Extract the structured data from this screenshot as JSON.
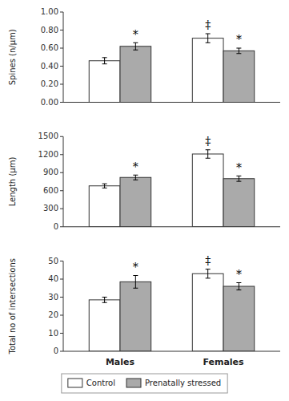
{
  "chart_data": [
    {
      "type": "bar",
      "y_label": "Spines (n/μm)",
      "categories": [
        null,
        null
      ],
      "series": [
        {
          "color": "white",
          "values": [
            0.46,
            0.71
          ],
          "errors": [
            0.035,
            0.05
          ]
        },
        {
          "color": "#aaaaaa",
          "values": [
            0.62,
            0.57
          ],
          "errors": [
            0.04,
            0.03
          ]
        }
      ],
      "ylim": [
        0.0,
        1.0
      ],
      "yticks": [
        {
          "value": 0.0,
          "label": "0.00"
        },
        {
          "value": 0.2,
          "label": "0.20"
        },
        {
          "value": 0.4,
          "label": "0.40"
        },
        {
          "value": 0.6,
          "label": "0.60"
        },
        {
          "value": 0.8,
          "label": "0.80"
        },
        {
          "value": 1.0,
          "label": "1.00"
        }
      ],
      "grid": false,
      "annotations": [
        {
          "text": "*",
          "series": 1,
          "category": 0
        },
        {
          "text": "‡",
          "series": 0,
          "category": 1
        },
        {
          "text": "*",
          "series": 1,
          "category": 1
        }
      ]
    },
    {
      "type": "bar",
      "y_label": "Length (μm)",
      "categories": [
        null,
        null
      ],
      "series": [
        {
          "color": "white",
          "values": [
            680,
            1210
          ],
          "errors": [
            35,
            70
          ]
        },
        {
          "color": "#aaaaaa",
          "values": [
            820,
            800
          ],
          "errors": [
            40,
            45
          ]
        }
      ],
      "ylim": [
        0,
        1500
      ],
      "yticks": [
        0,
        300,
        600,
        900,
        1200,
        1500
      ],
      "grid": false,
      "annotations": [
        {
          "text": "*",
          "series": 1,
          "category": 0
        },
        {
          "text": "‡",
          "series": 0,
          "category": 1
        },
        {
          "text": "*",
          "series": 1,
          "category": 1
        }
      ]
    },
    {
      "type": "bar",
      "y_label": "Total no of intersections",
      "categories": [
        "Males",
        "Females"
      ],
      "series": [
        {
          "name": "Control",
          "color": "white",
          "values": [
            28.5,
            43.0
          ],
          "errors": [
            1.5,
            2.5
          ]
        },
        {
          "name": "Prenatally stressed",
          "color": "#aaaaaa",
          "values": [
            38.5,
            36.0
          ],
          "errors": [
            3.5,
            2.0
          ]
        }
      ],
      "ylim": [
        0,
        50
      ],
      "yticks": [
        0,
        10,
        20,
        30,
        40,
        50
      ],
      "grid": false,
      "legend": "bottom",
      "annotations": [
        {
          "text": "*",
          "series": 1,
          "category": 0
        },
        {
          "text": "‡",
          "series": 0,
          "category": 1
        },
        {
          "text": "*",
          "series": 1,
          "category": 1
        }
      ]
    }
  ]
}
